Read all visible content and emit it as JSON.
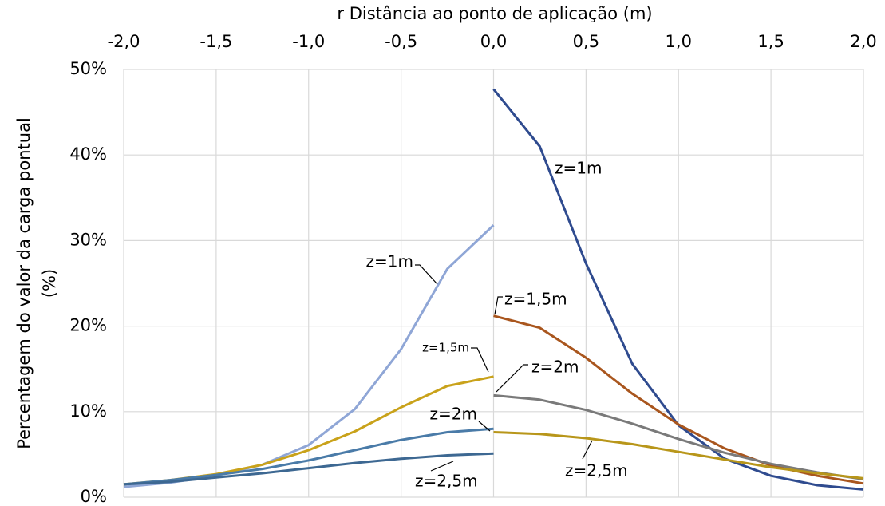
{
  "chart_data": {
    "type": "line",
    "xlabel": "r Distância ao ponto de aplicação  (m)",
    "ylabel": [
      "Percentagem do valor da carga pontual",
      "(%)"
    ],
    "xlim": [
      -2,
      2
    ],
    "xticks": [
      {
        "value": -2,
        "label": "-2,0"
      },
      {
        "value": -1.5,
        "label": "-1,5"
      },
      {
        "value": -1,
        "label": "-1,0"
      },
      {
        "value": -0.5,
        "label": "-0,5"
      },
      {
        "value": 0,
        "label": "0,0"
      },
      {
        "value": 0.5,
        "label": "0,5"
      },
      {
        "value": 1,
        "label": "1,0"
      },
      {
        "value": 1.5,
        "label": "1,5"
      },
      {
        "value": 2,
        "label": "2,0"
      }
    ],
    "ylim": [
      0,
      50
    ],
    "yticks": [
      {
        "value": 0,
        "label": "0%"
      },
      {
        "value": 10,
        "label": "10%"
      },
      {
        "value": 20,
        "label": "20%"
      },
      {
        "value": 30,
        "label": "30%"
      },
      {
        "value": 40,
        "label": "40%"
      },
      {
        "value": 50,
        "label": "50%"
      }
    ],
    "grid": true,
    "series": [
      {
        "name": "z=1m",
        "color": "#8fa6d6",
        "x": [
          -2,
          -1.75,
          -1.5,
          -1.25,
          -1,
          -0.75,
          -0.5,
          -0.25,
          0
        ],
        "values": [
          1.2,
          1.7,
          2.5,
          3.8,
          6.1,
          10.3,
          17.3,
          26.7,
          31.8
        ]
      },
      {
        "name": "z=1,5m",
        "color": "#c9a21a",
        "x": [
          -2,
          -1.75,
          -1.5,
          -1.25,
          -1,
          -0.75,
          -0.5,
          -0.25,
          0
        ],
        "values": [
          1.5,
          2.0,
          2.7,
          3.8,
          5.5,
          7.7,
          10.5,
          13.0,
          14.1
        ]
      },
      {
        "name": "z=2m",
        "color": "#4a7ba8",
        "x": [
          -2,
          -1.75,
          -1.5,
          -1.25,
          -1,
          -0.75,
          -0.5,
          -0.25,
          0
        ],
        "values": [
          1.5,
          2.0,
          2.6,
          3.3,
          4.3,
          5.5,
          6.7,
          7.6,
          8.0
        ]
      },
      {
        "name": "z=2,5m",
        "color": "#3d6892",
        "x": [
          -2,
          -1.75,
          -1.5,
          -1.25,
          -1,
          -0.75,
          -0.5,
          -0.25,
          0
        ],
        "values": [
          1.5,
          1.8,
          2.3,
          2.8,
          3.4,
          4.0,
          4.5,
          4.9,
          5.1
        ]
      },
      {
        "name": "z=1m",
        "color": "#2f4b8f",
        "x": [
          0,
          0.25,
          0.5,
          0.75,
          1,
          1.25,
          1.5,
          1.75,
          2
        ],
        "values": [
          47.7,
          41.0,
          27.3,
          15.6,
          8.4,
          4.5,
          2.5,
          1.4,
          0.9
        ]
      },
      {
        "name": "z=1,5m",
        "color": "#a9561e",
        "x": [
          0,
          0.25,
          0.5,
          0.75,
          1,
          1.25,
          1.5,
          1.75,
          2
        ],
        "values": [
          21.2,
          19.8,
          16.3,
          12.1,
          8.5,
          5.7,
          3.7,
          2.5,
          1.6
        ]
      },
      {
        "name": "z=2m",
        "color": "#7a7a7a",
        "x": [
          0,
          0.25,
          0.5,
          0.75,
          1,
          1.25,
          1.5,
          1.75,
          2
        ],
        "values": [
          11.9,
          11.4,
          10.2,
          8.6,
          6.8,
          5.2,
          3.9,
          2.9,
          2.1
        ]
      },
      {
        "name": "z=2,5m",
        "color": "#b8961a",
        "x": [
          0,
          0.25,
          0.5,
          0.75,
          1,
          1.25,
          1.5,
          1.75,
          2
        ],
        "values": [
          7.6,
          7.4,
          6.9,
          6.2,
          5.3,
          4.4,
          3.5,
          2.8,
          2.2
        ]
      }
    ]
  }
}
